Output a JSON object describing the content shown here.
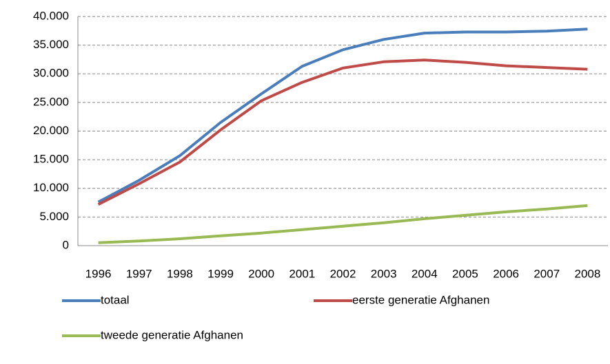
{
  "chart_data": {
    "type": "line",
    "categories": [
      "1996",
      "1997",
      "1998",
      "1999",
      "2000",
      "2001",
      "2002",
      "2003",
      "2004",
      "2005",
      "2006",
      "2007",
      "2008"
    ],
    "series": [
      {
        "name": "totaal",
        "color": "#4a7ebb",
        "values": [
          7600,
          11400,
          15700,
          21500,
          26500,
          31300,
          34200,
          36000,
          37100,
          37300,
          37300,
          37450,
          37800
        ]
      },
      {
        "name": "eerste generatie Afghanen",
        "color": "#be4b48",
        "values": [
          7200,
          10800,
          14600,
          20200,
          25300,
          28500,
          31000,
          32100,
          32400,
          32000,
          31400,
          31100,
          30800
        ]
      },
      {
        "name": "tweede generatie Afghanen",
        "color": "#98b954",
        "values": [
          500,
          800,
          1200,
          1700,
          2200,
          2800,
          3400,
          4000,
          4700,
          5300,
          5900,
          6400,
          7000
        ]
      }
    ],
    "ylim": [
      0,
      40000
    ],
    "yticks": [
      0,
      {
        "value": 5000,
        "label": "5.000"
      },
      {
        "value": 10000,
        "label": "10.000"
      },
      {
        "value": 15000,
        "label": "15.000"
      },
      {
        "value": 20000,
        "label": "20.000"
      },
      {
        "value": 25000,
        "label": "25.000"
      },
      {
        "value": 30000,
        "label": "30.000"
      },
      {
        "value": 35000,
        "label": "35.000"
      },
      {
        "value": 40000,
        "label": "40.000"
      }
    ],
    "grid": true,
    "legend": "bottom"
  }
}
